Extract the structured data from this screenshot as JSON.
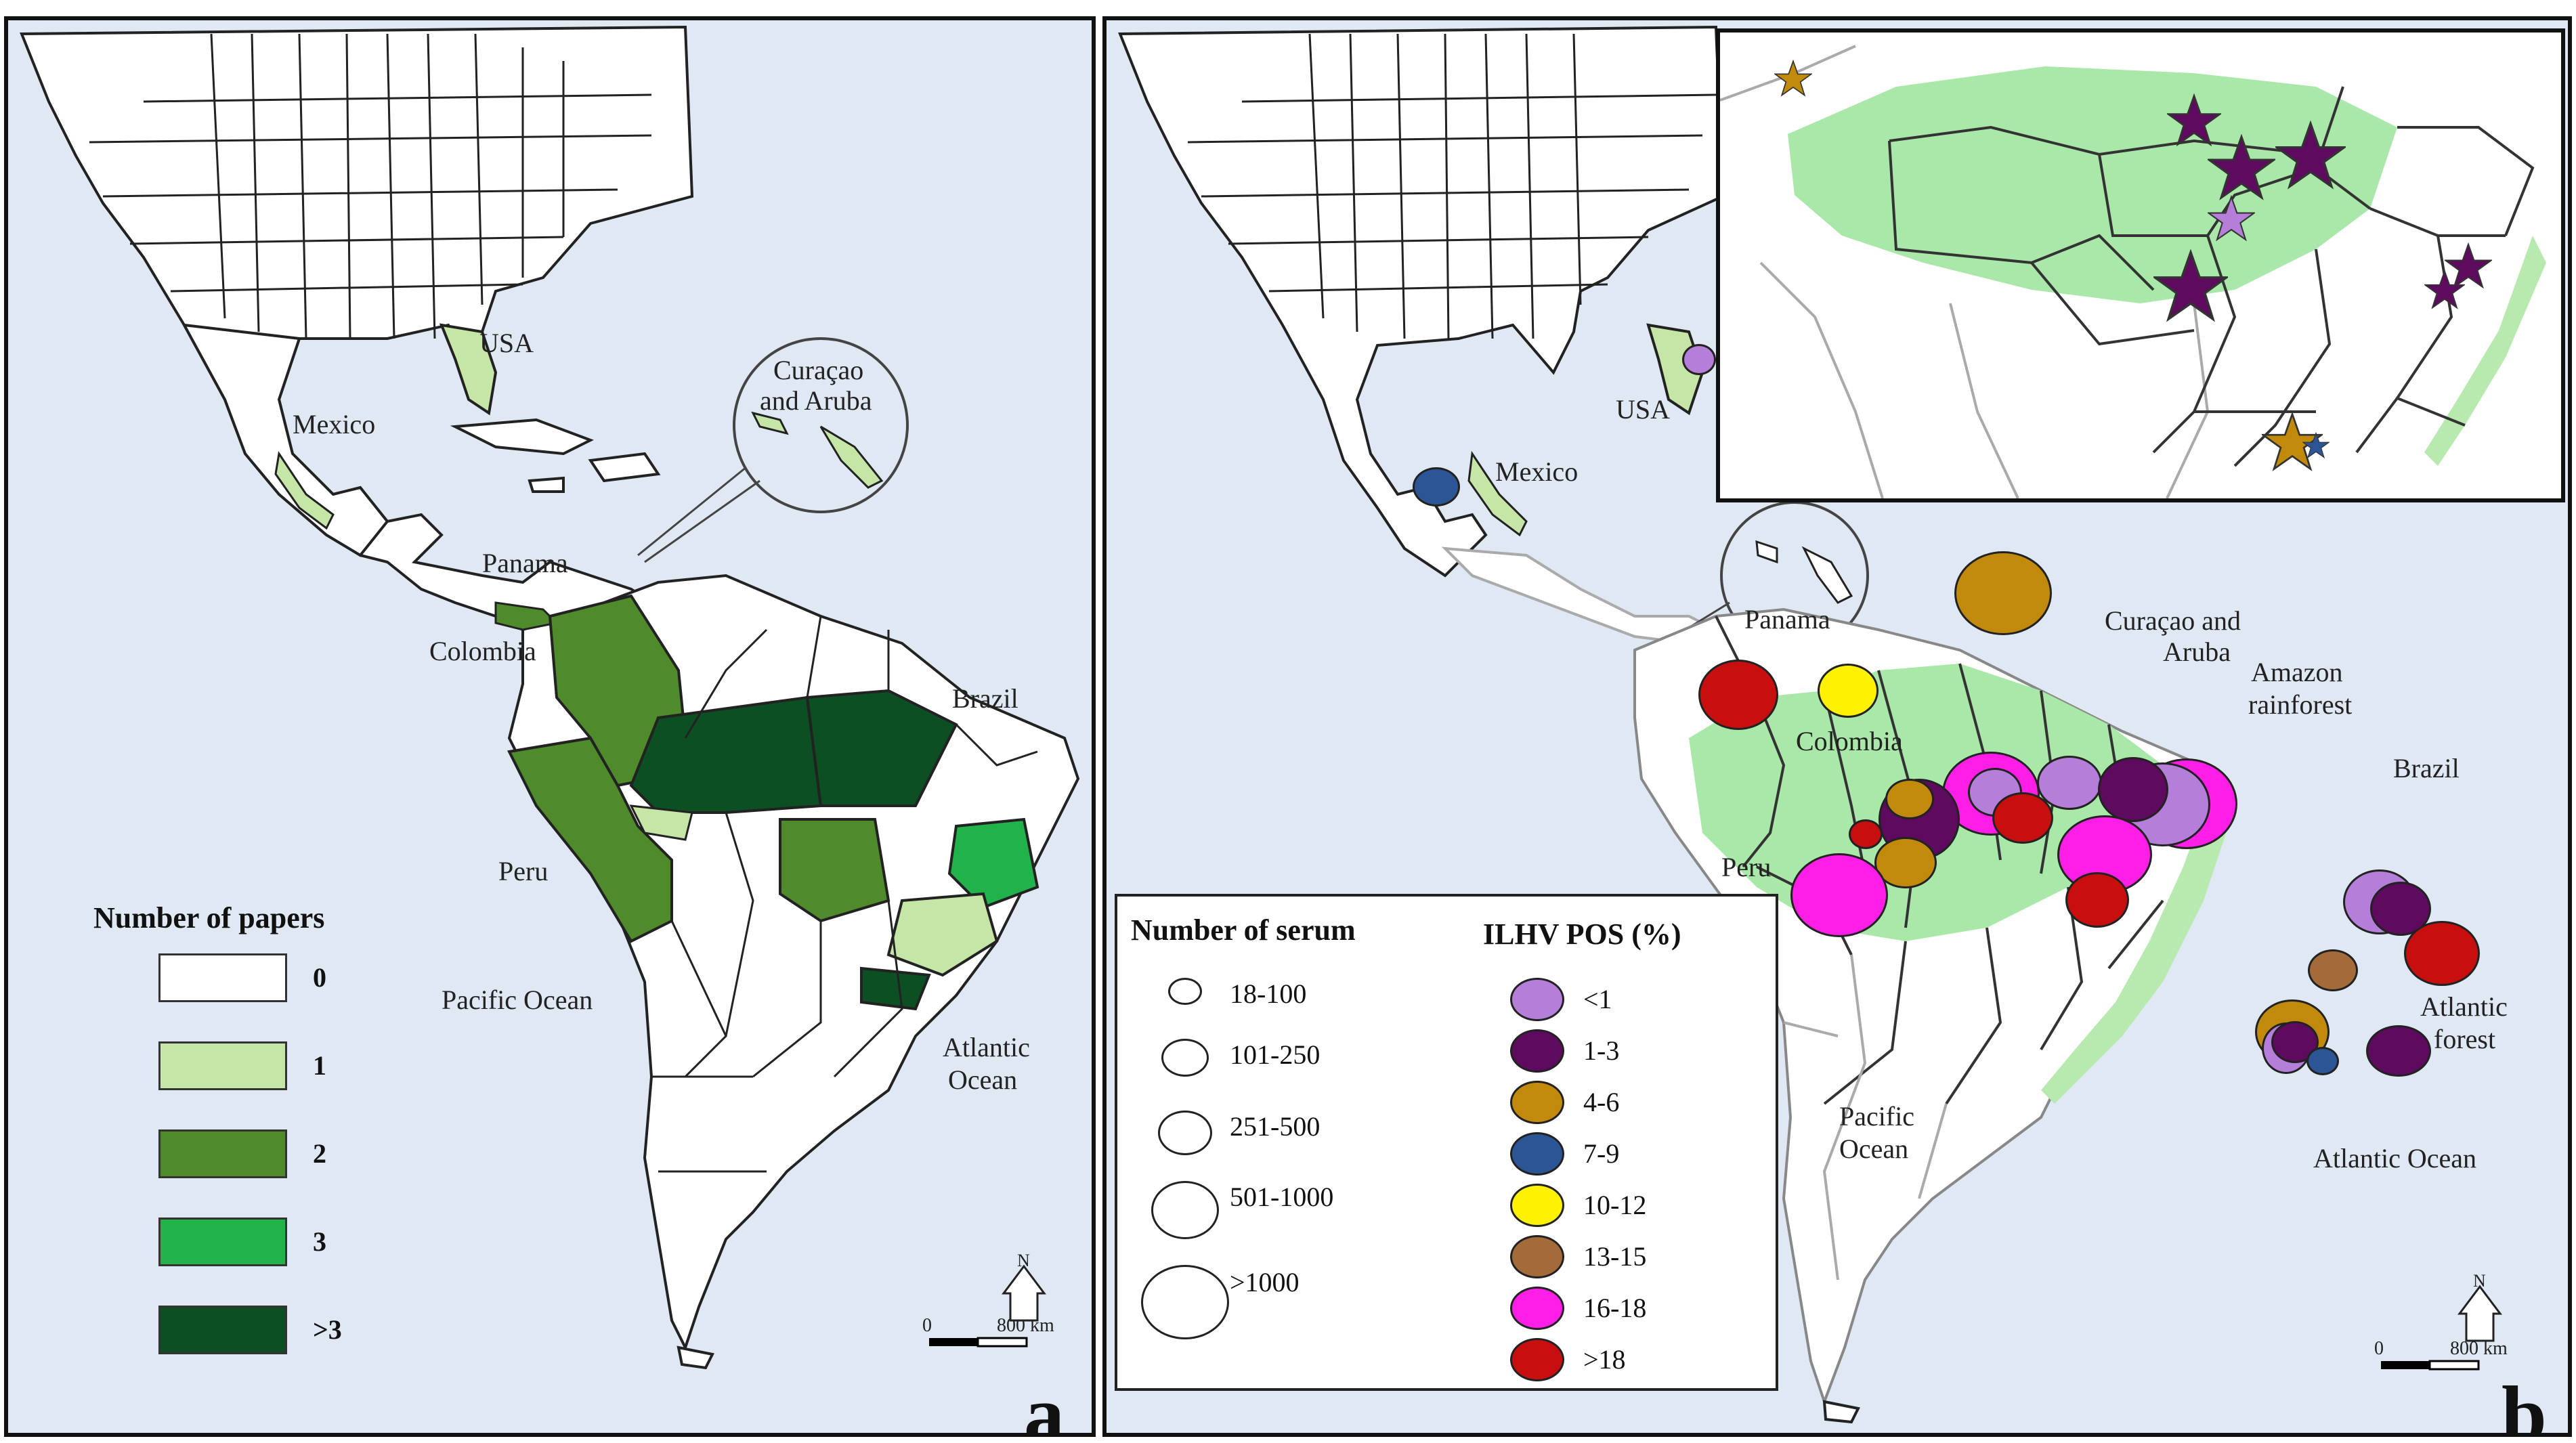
{
  "panel_a": {
    "letter": "a",
    "labels": {
      "usa": "USA",
      "mexico": "Mexico",
      "curacao": "Curaçao",
      "curacao2": "and Aruba",
      "panama": "Panama",
      "colombia": "Colombia",
      "brazil": "Brazil",
      "peru": "Peru",
      "pacific": "Pacific Ocean",
      "atlantic1": "Atlantic",
      "atlantic2": "Ocean"
    },
    "legend": {
      "title": "Number of papers",
      "items": [
        {
          "label": "0",
          "color": "#ffffff"
        },
        {
          "label": "1",
          "color": "#c6e6a7"
        },
        {
          "label": "2",
          "color": "#4f8a2b"
        },
        {
          "label": "3",
          "color": "#21b24a"
        },
        {
          "label": ">3",
          "color": "#0b4f22"
        }
      ]
    },
    "scale": {
      "zero": "0",
      "distance": "800 km",
      "north": "N"
    }
  },
  "panel_b": {
    "letter": "b",
    "labels": {
      "usa": "USA",
      "mexico": "Mexico",
      "panama": "Panama",
      "curacao1": "Curaçao and",
      "curacao2": "Aruba",
      "amazon1": "Amazon",
      "amazon2": "rainforest",
      "colombia": "Colombia",
      "brazil": "Brazil",
      "peru": "Peru",
      "atlantic_forest1": "Atlantic",
      "atlantic_forest2": "forest",
      "pacific1": "Pacific",
      "pacific2": "Ocean",
      "atlantic": "Atlantic Ocean"
    },
    "legend": {
      "serum_title": "Number of serum",
      "serum_items": [
        "18-100",
        "101-250",
        "251-500",
        "501-1000",
        ">1000"
      ],
      "pos_title": "ILHV POS (%)",
      "pos_items": [
        {
          "label": "<1",
          "color": "#b57fd9"
        },
        {
          "label": "1-3",
          "color": "#5e0a5e"
        },
        {
          "label": "4-6",
          "color": "#c28a0a"
        },
        {
          "label": "7-9",
          "color": "#2b5594"
        },
        {
          "label": "10-12",
          "color": "#fff200"
        },
        {
          "label": "13-15",
          "color": "#a36a3a"
        },
        {
          "label": "16-18",
          "color": "#ff1ee6"
        },
        {
          "label": ">18",
          "color": "#c80f0f"
        }
      ]
    },
    "scale": {
      "zero": "0",
      "distance": "800 km",
      "north": "N"
    }
  },
  "colors": {
    "water": "#dfe8f3",
    "land": "#ffffff",
    "amazon": "#a9e8a9",
    "atlantic_forest": "#b8eab0",
    "star_purple": "#5e0a5e",
    "star_lilac": "#b57fd9",
    "star_gold": "#c28a0a",
    "star_blue": "#2b5594"
  }
}
